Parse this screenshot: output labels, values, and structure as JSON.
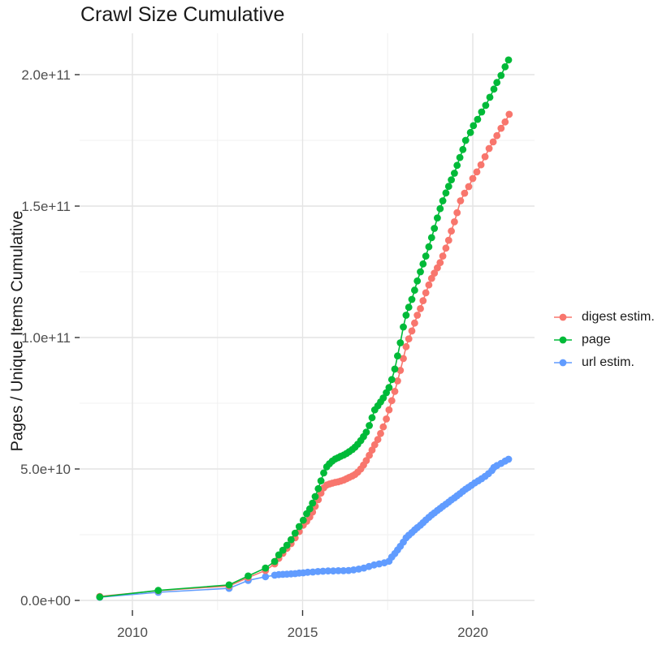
{
  "title": "Crawl Size Cumulative",
  "axes": {
    "y_title": "Pages / Unique Items Cumulative",
    "y_ticks": [
      {
        "label": "0.0e+00",
        "value": 0
      },
      {
        "label": "5.0e+10",
        "value": 50
      },
      {
        "label": "1.0e+11",
        "value": 100
      },
      {
        "label": "1.5e+11",
        "value": 150
      },
      {
        "label": "2.0e+11",
        "value": 200
      }
    ],
    "y_minor": [
      25,
      75,
      125,
      175
    ],
    "x_ticks": [
      {
        "label": "2010",
        "value": 2010
      },
      {
        "label": "2015",
        "value": 2015
      },
      {
        "label": "2020",
        "value": 2020
      }
    ],
    "x_minor": [
      2012.5,
      2017.5
    ]
  },
  "chart_data": {
    "type": "scatter",
    "title": "Crawl Size Cumulative",
    "xlabel": "",
    "ylabel": "Pages / Unique Items Cumulative",
    "y_unit": "billions (1e9)",
    "xlim": [
      2008.45,
      2021.8
    ],
    "ylim_billions": [
      -3,
      216
    ],
    "grid": true,
    "legend_position": "right",
    "draw_order": [
      2,
      0,
      1
    ],
    "series": [
      {
        "name": "digest estim.",
        "color": "#F8766D",
        "points": [
          [
            2009.04,
            1.5
          ],
          [
            2010.76,
            3.7
          ],
          [
            2012.84,
            5.5
          ],
          [
            2013.4,
            8.7
          ],
          [
            2013.91,
            11.4
          ],
          [
            2014.18,
            13.9
          ],
          [
            2014.3,
            16.0
          ],
          [
            2014.42,
            17.9
          ],
          [
            2014.54,
            19.8
          ],
          [
            2014.66,
            21.6
          ],
          [
            2014.78,
            23.8
          ],
          [
            2014.9,
            26.2
          ],
          [
            2015.02,
            28.6
          ],
          [
            2015.12,
            30.1
          ],
          [
            2015.21,
            31.7
          ],
          [
            2015.29,
            33.6
          ],
          [
            2015.37,
            35.8
          ],
          [
            2015.46,
            38.3
          ],
          [
            2015.54,
            40.8
          ],
          [
            2015.62,
            42.8
          ],
          [
            2015.71,
            43.9
          ],
          [
            2015.79,
            44.3
          ],
          [
            2015.87,
            44.6
          ],
          [
            2015.96,
            44.9
          ],
          [
            2016.04,
            45.1
          ],
          [
            2016.12,
            45.4
          ],
          [
            2016.21,
            45.8
          ],
          [
            2016.29,
            46.3
          ],
          [
            2016.37,
            46.8
          ],
          [
            2016.46,
            47.3
          ],
          [
            2016.54,
            47.9
          ],
          [
            2016.62,
            48.8
          ],
          [
            2016.71,
            50.0
          ],
          [
            2016.79,
            51.5
          ],
          [
            2016.87,
            53.2
          ],
          [
            2016.96,
            55.2
          ],
          [
            2017.04,
            57.2
          ],
          [
            2017.12,
            59.2
          ],
          [
            2017.21,
            61.2
          ],
          [
            2017.29,
            63.5
          ],
          [
            2017.37,
            66.0
          ],
          [
            2017.46,
            69.0
          ],
          [
            2017.54,
            72.5
          ],
          [
            2017.62,
            76.0
          ],
          [
            2017.71,
            79.5
          ],
          [
            2017.79,
            83.5
          ],
          [
            2017.87,
            87.5
          ],
          [
            2017.96,
            92.0
          ],
          [
            2018.04,
            96.5
          ],
          [
            2018.12,
            99.5
          ],
          [
            2018.21,
            102.5
          ],
          [
            2018.29,
            105.5
          ],
          [
            2018.37,
            108.5
          ],
          [
            2018.46,
            111.0
          ],
          [
            2018.54,
            114.0
          ],
          [
            2018.62,
            117.0
          ],
          [
            2018.71,
            120.0
          ],
          [
            2018.79,
            122.5
          ],
          [
            2018.87,
            124.5
          ],
          [
            2018.96,
            126.5
          ],
          [
            2019.04,
            128.5
          ],
          [
            2019.12,
            131.0
          ],
          [
            2019.21,
            134.0
          ],
          [
            2019.29,
            137.0
          ],
          [
            2019.37,
            140.5
          ],
          [
            2019.46,
            144.0
          ],
          [
            2019.54,
            147.5
          ],
          [
            2019.64,
            152.0
          ],
          [
            2019.76,
            154.9
          ],
          [
            2019.88,
            157.4
          ],
          [
            2020.0,
            160.5
          ],
          [
            2020.12,
            163.0
          ],
          [
            2020.24,
            165.7
          ],
          [
            2020.36,
            168.8
          ],
          [
            2020.48,
            171.9
          ],
          [
            2020.6,
            174.4
          ],
          [
            2020.71,
            176.8
          ],
          [
            2020.83,
            179.6
          ],
          [
            2020.95,
            182.0
          ],
          [
            2021.07,
            184.9
          ]
        ]
      },
      {
        "name": "page",
        "color": "#00BA38",
        "points": [
          [
            2009.04,
            1.3
          ],
          [
            2010.76,
            3.8
          ],
          [
            2012.84,
            5.9
          ],
          [
            2013.4,
            9.3
          ],
          [
            2013.91,
            12.3
          ],
          [
            2014.18,
            14.8
          ],
          [
            2014.3,
            17.3
          ],
          [
            2014.42,
            19.1
          ],
          [
            2014.54,
            21.0
          ],
          [
            2014.66,
            23.1
          ],
          [
            2014.78,
            25.6
          ],
          [
            2014.9,
            28.1
          ],
          [
            2015.02,
            30.5
          ],
          [
            2015.12,
            33.0
          ],
          [
            2015.21,
            34.8
          ],
          [
            2015.29,
            37.0
          ],
          [
            2015.37,
            39.5
          ],
          [
            2015.46,
            42.5
          ],
          [
            2015.54,
            45.5
          ],
          [
            2015.62,
            48.5
          ],
          [
            2015.71,
            50.8
          ],
          [
            2015.79,
            52.0
          ],
          [
            2015.87,
            53.0
          ],
          [
            2015.96,
            53.8
          ],
          [
            2016.04,
            54.3
          ],
          [
            2016.12,
            54.8
          ],
          [
            2016.21,
            55.3
          ],
          [
            2016.29,
            55.9
          ],
          [
            2016.37,
            56.6
          ],
          [
            2016.46,
            57.4
          ],
          [
            2016.54,
            58.3
          ],
          [
            2016.62,
            59.4
          ],
          [
            2016.71,
            60.8
          ],
          [
            2016.79,
            62.3
          ],
          [
            2016.87,
            64.0
          ],
          [
            2016.96,
            66.5
          ],
          [
            2017.04,
            69.5
          ],
          [
            2017.12,
            72.5
          ],
          [
            2017.21,
            74.0
          ],
          [
            2017.29,
            75.5
          ],
          [
            2017.37,
            77.0
          ],
          [
            2017.46,
            79.0
          ],
          [
            2017.54,
            81.0
          ],
          [
            2017.62,
            84.0
          ],
          [
            2017.71,
            88.0
          ],
          [
            2017.79,
            93.0
          ],
          [
            2017.87,
            98.0
          ],
          [
            2017.96,
            104.0
          ],
          [
            2018.04,
            108.5
          ],
          [
            2018.12,
            111.5
          ],
          [
            2018.21,
            114.5
          ],
          [
            2018.29,
            118.0
          ],
          [
            2018.37,
            121.5
          ],
          [
            2018.46,
            125.0
          ],
          [
            2018.54,
            128.0
          ],
          [
            2018.62,
            131.0
          ],
          [
            2018.71,
            134.5
          ],
          [
            2018.79,
            138.0
          ],
          [
            2018.87,
            141.5
          ],
          [
            2018.96,
            145.5
          ],
          [
            2019.04,
            149.0
          ],
          [
            2019.12,
            152.0
          ],
          [
            2019.21,
            155.0
          ],
          [
            2019.29,
            157.5
          ],
          [
            2019.37,
            160.0
          ],
          [
            2019.46,
            162.5
          ],
          [
            2019.54,
            165.5
          ],
          [
            2019.62,
            168.5
          ],
          [
            2019.71,
            171.5
          ],
          [
            2019.79,
            175.0
          ],
          [
            2019.93,
            178.0
          ],
          [
            2020.02,
            180.6
          ],
          [
            2020.14,
            183.0
          ],
          [
            2020.26,
            185.8
          ],
          [
            2020.38,
            188.3
          ],
          [
            2020.5,
            191.4
          ],
          [
            2020.62,
            194.5
          ],
          [
            2020.71,
            197.0
          ],
          [
            2020.83,
            199.7
          ],
          [
            2020.95,
            203.0
          ],
          [
            2021.05,
            205.6
          ]
        ]
      },
      {
        "name": "url estim.",
        "color": "#619CFF",
        "points": [
          [
            2009.04,
            1.2
          ],
          [
            2010.76,
            3.1
          ],
          [
            2012.84,
            4.6
          ],
          [
            2013.4,
            7.6
          ],
          [
            2013.91,
            9.0
          ],
          [
            2014.18,
            9.6
          ],
          [
            2014.3,
            9.8
          ],
          [
            2014.42,
            9.9
          ],
          [
            2014.54,
            10.0
          ],
          [
            2014.66,
            10.1
          ],
          [
            2014.78,
            10.2
          ],
          [
            2014.9,
            10.4
          ],
          [
            2015.02,
            10.5
          ],
          [
            2015.15,
            10.7
          ],
          [
            2015.3,
            10.8
          ],
          [
            2015.45,
            11.0
          ],
          [
            2015.6,
            11.1
          ],
          [
            2015.75,
            11.2
          ],
          [
            2015.9,
            11.2
          ],
          [
            2016.05,
            11.3
          ],
          [
            2016.2,
            11.3
          ],
          [
            2016.35,
            11.4
          ],
          [
            2016.5,
            11.6
          ],
          [
            2016.65,
            11.9
          ],
          [
            2016.8,
            12.3
          ],
          [
            2016.95,
            12.9
          ],
          [
            2017.1,
            13.5
          ],
          [
            2017.25,
            13.9
          ],
          [
            2017.4,
            14.3
          ],
          [
            2017.54,
            14.9
          ],
          [
            2017.62,
            16.5
          ],
          [
            2017.71,
            17.8
          ],
          [
            2017.79,
            19.2
          ],
          [
            2017.87,
            20.6
          ],
          [
            2017.96,
            22.2
          ],
          [
            2018.04,
            23.8
          ],
          [
            2018.12,
            24.8
          ],
          [
            2018.21,
            25.8
          ],
          [
            2018.29,
            26.8
          ],
          [
            2018.37,
            27.7
          ],
          [
            2018.46,
            28.6
          ],
          [
            2018.54,
            29.6
          ],
          [
            2018.62,
            30.6
          ],
          [
            2018.71,
            31.6
          ],
          [
            2018.79,
            32.5
          ],
          [
            2018.87,
            33.3
          ],
          [
            2018.96,
            34.2
          ],
          [
            2019.04,
            35.0
          ],
          [
            2019.12,
            35.8
          ],
          [
            2019.21,
            36.6
          ],
          [
            2019.29,
            37.4
          ],
          [
            2019.37,
            38.2
          ],
          [
            2019.46,
            39.0
          ],
          [
            2019.54,
            39.8
          ],
          [
            2019.62,
            40.6
          ],
          [
            2019.71,
            41.5
          ],
          [
            2019.79,
            42.3
          ],
          [
            2019.87,
            43.0
          ],
          [
            2019.96,
            43.8
          ],
          [
            2020.06,
            44.7
          ],
          [
            2020.16,
            45.5
          ],
          [
            2020.26,
            46.3
          ],
          [
            2020.36,
            47.2
          ],
          [
            2020.46,
            48.2
          ],
          [
            2020.56,
            49.4
          ],
          [
            2020.62,
            50.6
          ],
          [
            2020.71,
            51.3
          ],
          [
            2020.83,
            52.1
          ],
          [
            2020.95,
            53.0
          ],
          [
            2021.05,
            53.7
          ]
        ]
      }
    ]
  },
  "colors": {
    "background": "#ffffff",
    "grid_major": "#e4e4e4",
    "grid_minor": "#f1f1f1",
    "tick_mark": "#333333",
    "tick_text": "#4d4d4d",
    "title_text": "#1a1a1a"
  }
}
